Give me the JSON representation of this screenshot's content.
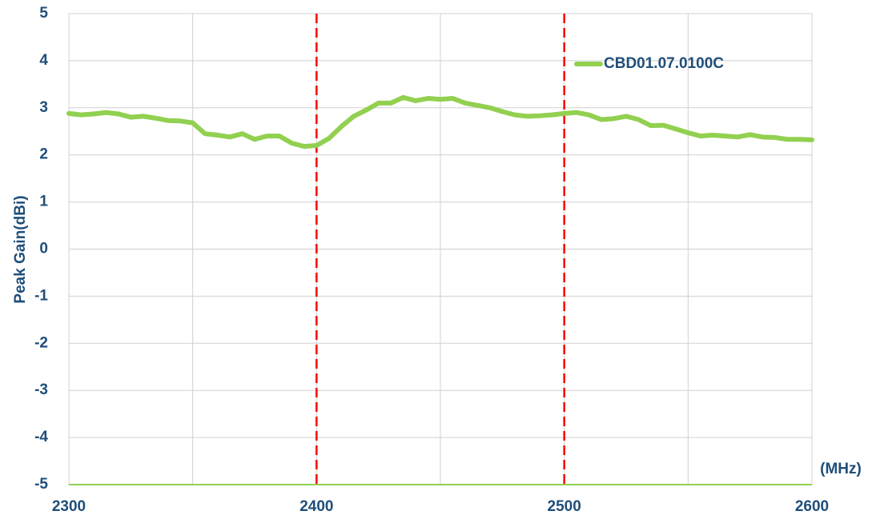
{
  "chart_data": {
    "type": "line",
    "ylabel": "Peak Gain(dBi)",
    "xlabel": "(MHz)",
    "x": [
      2300,
      2305,
      2310,
      2315,
      2320,
      2325,
      2330,
      2335,
      2340,
      2345,
      2350,
      2355,
      2360,
      2365,
      2370,
      2375,
      2380,
      2385,
      2390,
      2395,
      2400,
      2405,
      2410,
      2415,
      2420,
      2425,
      2430,
      2435,
      2440,
      2445,
      2450,
      2455,
      2460,
      2465,
      2470,
      2475,
      2480,
      2485,
      2490,
      2495,
      2500,
      2505,
      2510,
      2515,
      2520,
      2525,
      2530,
      2535,
      2540,
      2545,
      2550,
      2555,
      2560,
      2565,
      2570,
      2575,
      2580,
      2585,
      2590,
      2595,
      2600
    ],
    "series": [
      {
        "name": "CBD01.07.0100C",
        "color": "#92d050",
        "values": [
          2.88,
          2.85,
          2.87,
          2.9,
          2.87,
          2.8,
          2.82,
          2.78,
          2.73,
          2.72,
          2.68,
          2.45,
          2.42,
          2.38,
          2.45,
          2.33,
          2.4,
          2.4,
          2.25,
          2.18,
          2.2,
          2.35,
          2.6,
          2.82,
          2.95,
          3.1,
          3.1,
          3.22,
          3.15,
          3.2,
          3.18,
          3.2,
          3.1,
          3.05,
          3.0,
          2.92,
          2.85,
          2.82,
          2.83,
          2.85,
          2.88,
          2.9,
          2.85,
          2.75,
          2.77,
          2.82,
          2.75,
          2.62,
          2.63,
          2.55,
          2.47,
          2.4,
          2.42,
          2.4,
          2.38,
          2.43,
          2.38,
          2.37,
          2.33,
          2.33,
          2.32
        ]
      }
    ],
    "xlim": [
      2300,
      2600
    ],
    "xticks": [
      2300,
      2400,
      2500,
      2600
    ],
    "xminor": [
      2350,
      2450,
      2550
    ],
    "ylim": [
      -5,
      5
    ],
    "yticks": [
      -5,
      -4,
      -3,
      -2,
      -1,
      0,
      1,
      2,
      3,
      4,
      5
    ],
    "markers": [
      2400,
      2500
    ],
    "marker_color": "#ff0000",
    "grid": true,
    "legend": "upper right"
  }
}
